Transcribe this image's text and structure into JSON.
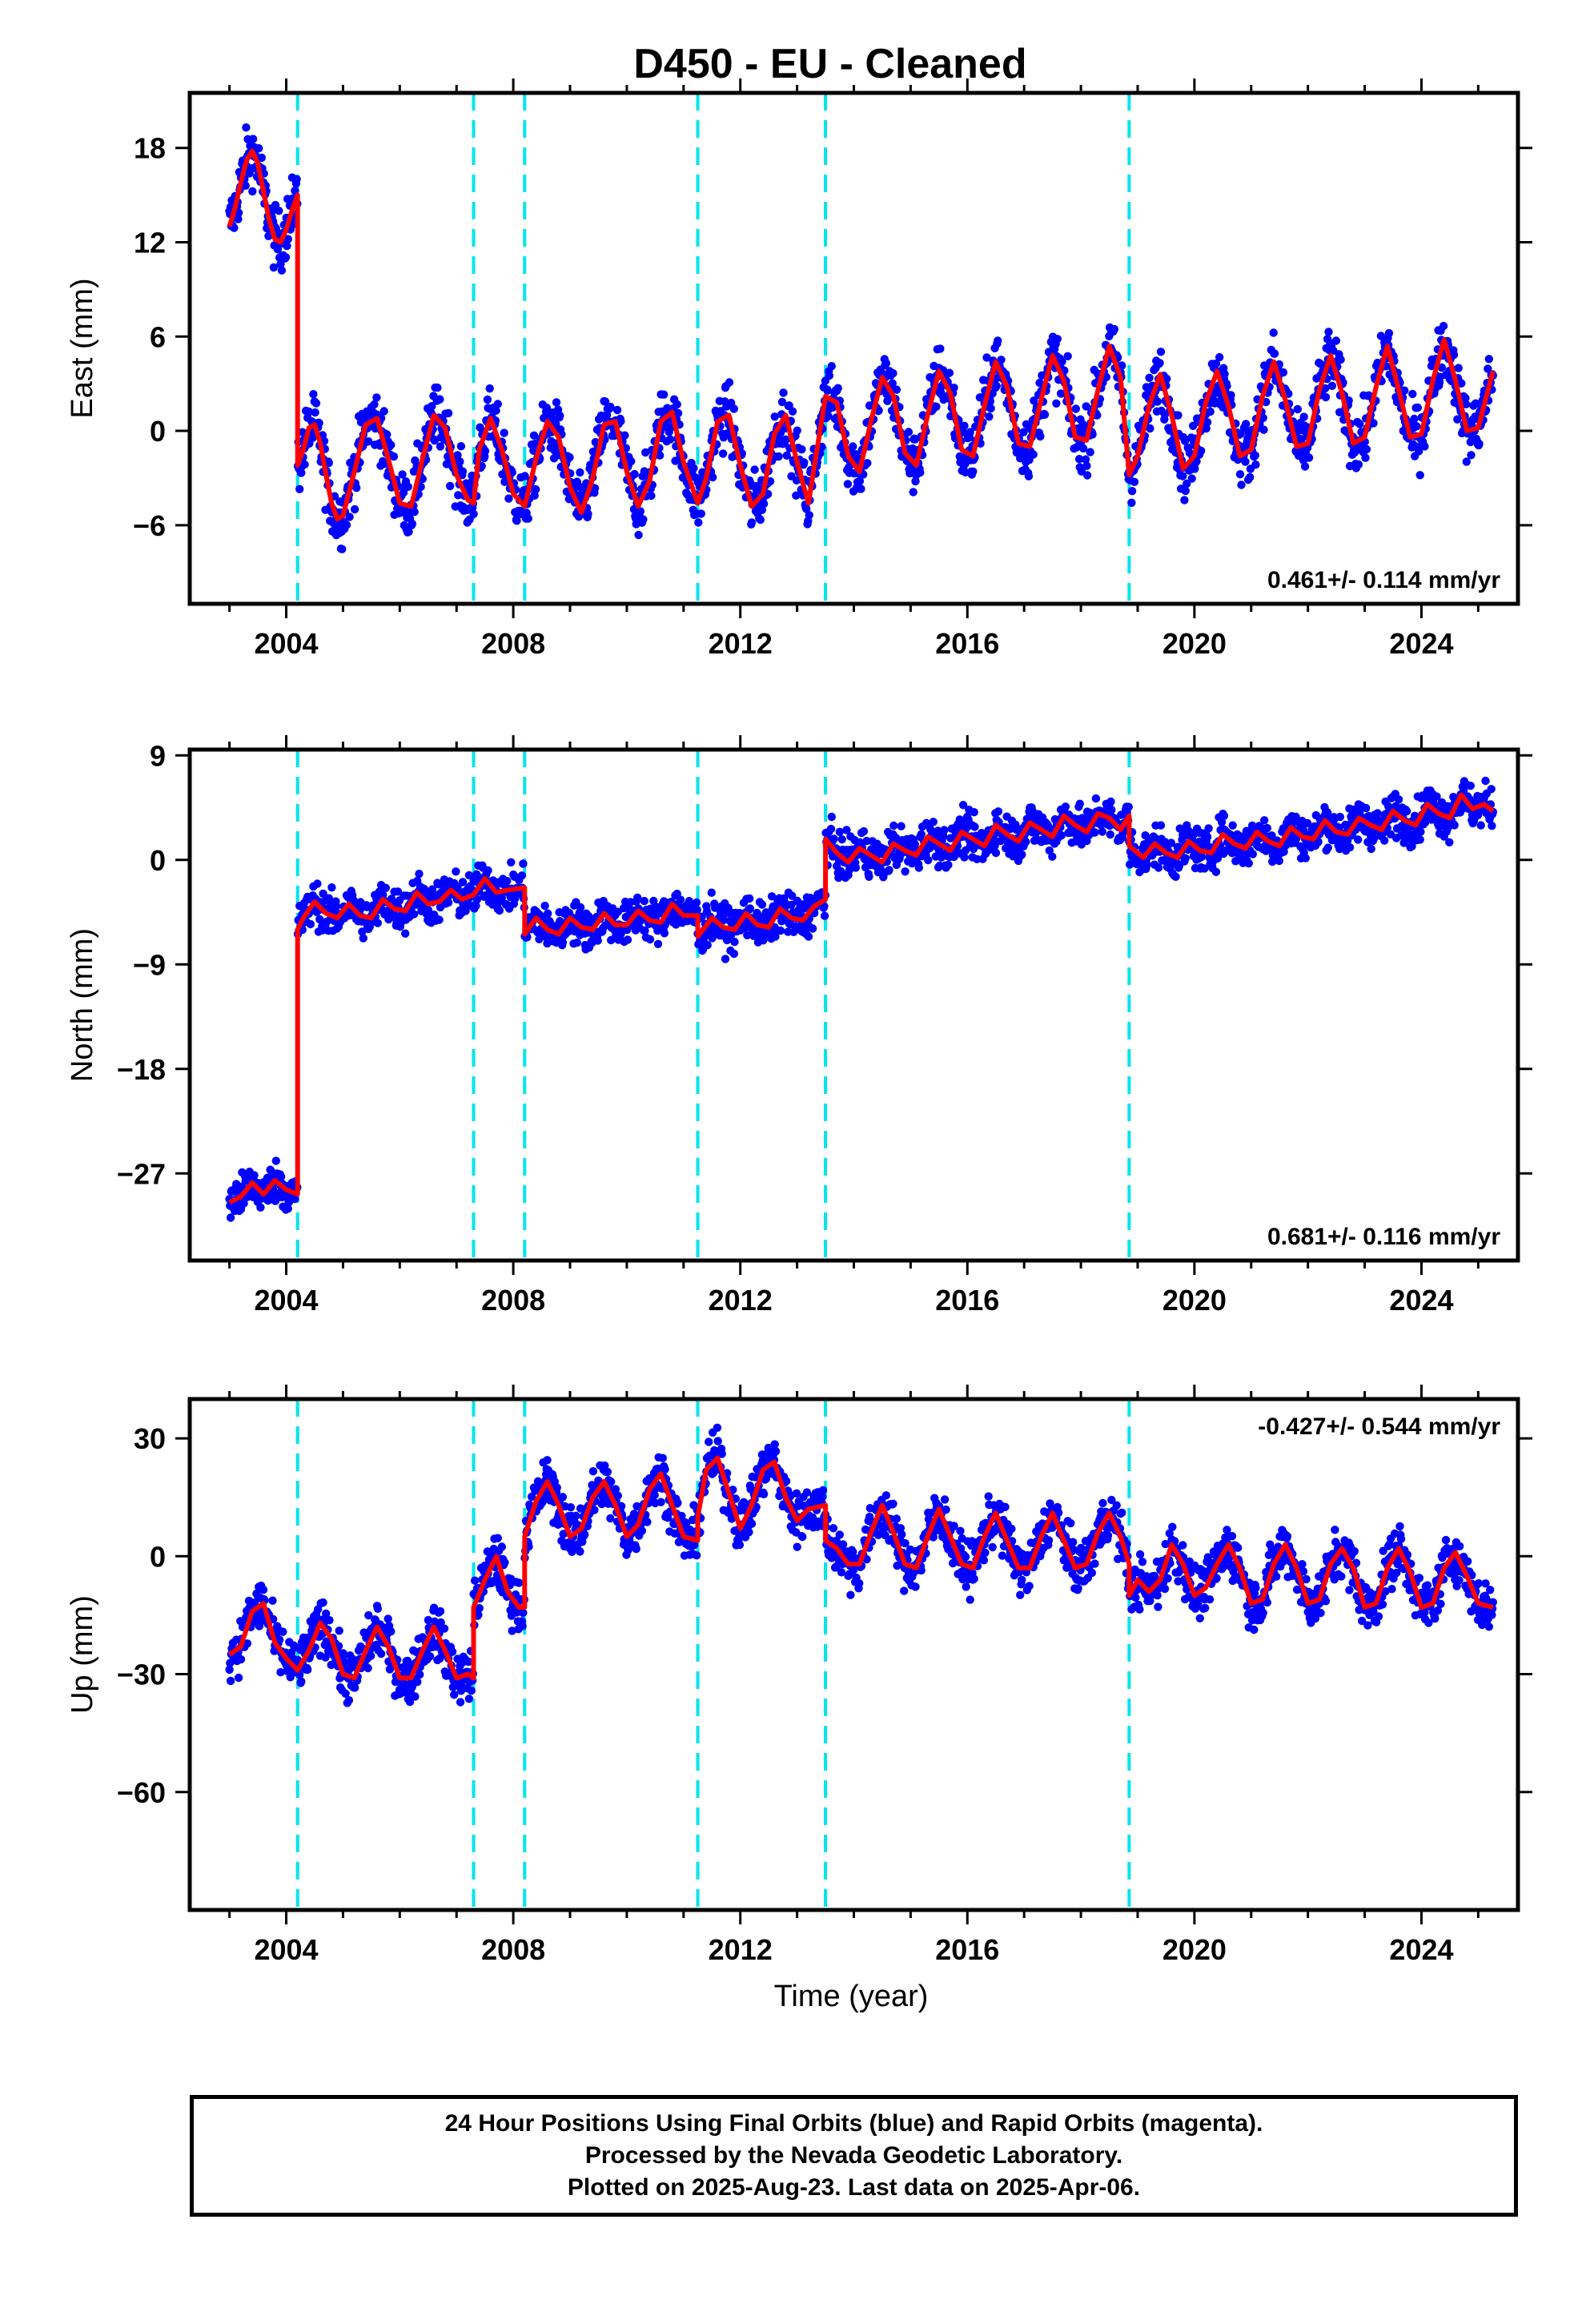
{
  "title": "D450  - EU - Cleaned",
  "xlabel": "Time (year)",
  "colors": {
    "data": "#0000ff",
    "model": "#ff0000",
    "breaks": "#00e5ee",
    "frame": "#000000"
  },
  "footer": {
    "line1": "24 Hour Positions Using Final Orbits (blue) and Rapid Orbits (magenta).",
    "line2": "Processed by the Nevada Geodetic Laboratory.",
    "line3": "Plotted on 2025-Aug-23. Last data on 2025-Apr-06."
  },
  "chart_data": [
    {
      "type": "scatter",
      "component": "east",
      "ylabel": "East (mm)",
      "rate_label": "0.461+/- 0.114 mm/yr",
      "rate_position": "bottom-right",
      "xlim": [
        2002.3,
        2025.7
      ],
      "ylim": [
        -11,
        21.5
      ],
      "xticks": [
        2004,
        2008,
        2012,
        2016,
        2020,
        2024
      ],
      "yticks": [
        -6,
        0,
        6,
        12,
        18
      ],
      "ytick_labels": [
        "−6",
        "0",
        "6",
        "12",
        "18"
      ],
      "steps": [
        2004.2,
        2007.3,
        2008.2,
        2011.25,
        2013.5,
        2018.85
      ],
      "data_range": [
        2003.0,
        2025.26
      ],
      "series": [
        {
          "legend": "model",
          "x": [
            2003.0,
            2003.1,
            2003.2,
            2003.3,
            2003.4,
            2003.5,
            2003.6,
            2003.7,
            2003.8,
            2003.9,
            2004.0,
            2004.1,
            2004.2,
            2004.2,
            2004.3,
            2004.4,
            2004.5,
            2004.6,
            2004.7,
            2004.8,
            2004.9,
            2005.0,
            2005.2,
            2005.4,
            2005.6,
            2005.8,
            2006.0,
            2006.2,
            2006.4,
            2006.6,
            2006.8,
            2007.0,
            2007.2,
            2007.3,
            2007.4,
            2007.6,
            2007.8,
            2008.0,
            2008.2,
            2008.4,
            2008.6,
            2008.8,
            2009.0,
            2009.2,
            2009.4,
            2009.6,
            2009.8,
            2010.0,
            2010.2,
            2010.4,
            2010.6,
            2010.8,
            2011.0,
            2011.25,
            2011.4,
            2011.6,
            2011.8,
            2012.0,
            2012.2,
            2012.4,
            2012.6,
            2012.8,
            2013.0,
            2013.2,
            2013.5,
            2013.7,
            2013.9,
            2014.1,
            2014.3,
            2014.5,
            2014.7,
            2014.9,
            2015.1,
            2015.3,
            2015.5,
            2015.7,
            2015.9,
            2016.1,
            2016.3,
            2016.5,
            2016.7,
            2016.9,
            2017.1,
            2017.3,
            2017.5,
            2017.7,
            2017.9,
            2018.1,
            2018.3,
            2018.5,
            2018.7,
            2018.85,
            2019.0,
            2019.2,
            2019.4,
            2019.6,
            2019.8,
            2020.0,
            2020.2,
            2020.4,
            2020.6,
            2020.8,
            2021.0,
            2021.2,
            2021.4,
            2021.6,
            2021.8,
            2022.0,
            2022.2,
            2022.4,
            2022.6,
            2022.8,
            2023.0,
            2023.2,
            2023.4,
            2023.6,
            2023.8,
            2024.0,
            2024.2,
            2024.4,
            2024.6,
            2024.8,
            2025.0,
            2025.26
          ],
          "y": [
            13.0,
            14.2,
            15.8,
            17.2,
            17.8,
            17.0,
            15.2,
            13.4,
            12.2,
            12.0,
            12.8,
            14.0,
            15.0,
            -2.2,
            -1.2,
            0.2,
            0.4,
            -0.8,
            -2.8,
            -4.6,
            -5.6,
            -5.4,
            -2.6,
            0.4,
            0.8,
            -1.8,
            -4.6,
            -4.8,
            -1.8,
            1.0,
            0.2,
            -2.8,
            -4.4,
            -4.6,
            -1.2,
            0.8,
            -1.2,
            -4.0,
            -4.8,
            -1.8,
            0.6,
            -0.4,
            -3.6,
            -5.2,
            -3.0,
            0.4,
            0.6,
            -2.6,
            -4.8,
            -3.2,
            0.6,
            1.2,
            -2.0,
            -4.6,
            -3.0,
            0.6,
            1.0,
            -2.2,
            -4.8,
            -4.0,
            -0.2,
            1.0,
            -2.0,
            -4.6,
            2.2,
            1.8,
            -1.6,
            -2.6,
            0.6,
            3.4,
            2.2,
            -1.4,
            -2.2,
            1.0,
            3.8,
            2.4,
            -1.2,
            -1.6,
            1.6,
            4.4,
            2.8,
            -0.8,
            -1.0,
            2.0,
            4.8,
            3.2,
            -0.4,
            -0.6,
            2.6,
            5.4,
            3.4,
            -2.8,
            -1.6,
            1.6,
            3.6,
            1.0,
            -2.4,
            -1.6,
            1.8,
            3.8,
            1.6,
            -1.6,
            -1.2,
            2.2,
            4.4,
            2.0,
            -1.0,
            -0.8,
            2.6,
            4.8,
            2.4,
            -0.8,
            -0.4,
            2.8,
            5.4,
            2.6,
            -0.4,
            -0.2,
            3.2,
            5.8,
            3.2,
            0.0,
            0.2,
            3.8
          ]
        }
      ]
    },
    {
      "type": "scatter",
      "component": "north",
      "ylabel": "North (mm)",
      "rate_label": "0.681+/- 0.116 mm/yr",
      "rate_position": "bottom-right",
      "xlim": [
        2002.3,
        2025.7
      ],
      "ylim": [
        -34.5,
        9.5
      ],
      "xticks": [
        2004,
        2008,
        2012,
        2016,
        2020,
        2024
      ],
      "yticks": [
        -27,
        -18,
        -9,
        0,
        9
      ],
      "ytick_labels": [
        "−27",
        "−18",
        "−9",
        "0",
        "9"
      ],
      "steps": [
        2004.2,
        2007.3,
        2008.2,
        2011.25,
        2013.5,
        2018.85
      ],
      "data_range": [
        2003.0,
        2025.26
      ],
      "series": [
        {
          "legend": "model",
          "x": [
            2003.0,
            2003.2,
            2003.4,
            2003.6,
            2003.8,
            2004.0,
            2004.2,
            2004.2,
            2004.3,
            2004.5,
            2004.7,
            2004.9,
            2005.1,
            2005.3,
            2005.5,
            2005.7,
            2005.9,
            2006.1,
            2006.3,
            2006.5,
            2006.7,
            2006.9,
            2007.1,
            2007.3,
            2007.5,
            2007.7,
            2007.9,
            2008.2,
            2008.2,
            2008.4,
            2008.6,
            2008.8,
            2009.0,
            2009.2,
            2009.4,
            2009.6,
            2009.8,
            2010.0,
            2010.2,
            2010.4,
            2010.6,
            2010.8,
            2011.0,
            2011.25,
            2011.25,
            2011.5,
            2011.7,
            2011.9,
            2012.1,
            2012.3,
            2012.5,
            2012.7,
            2012.9,
            2013.1,
            2013.3,
            2013.5,
            2013.5,
            2013.7,
            2013.9,
            2014.1,
            2014.3,
            2014.5,
            2014.7,
            2014.9,
            2015.1,
            2015.3,
            2015.5,
            2015.7,
            2015.9,
            2016.1,
            2016.3,
            2016.5,
            2016.7,
            2016.9,
            2017.1,
            2017.3,
            2017.5,
            2017.7,
            2017.9,
            2018.1,
            2018.3,
            2018.5,
            2018.7,
            2018.85,
            2018.85,
            2019.1,
            2019.3,
            2019.5,
            2019.7,
            2019.9,
            2020.1,
            2020.3,
            2020.5,
            2020.7,
            2020.9,
            2021.1,
            2021.3,
            2021.5,
            2021.7,
            2021.9,
            2022.1,
            2022.3,
            2022.5,
            2022.7,
            2022.9,
            2023.1,
            2023.3,
            2023.5,
            2023.7,
            2023.9,
            2024.1,
            2024.3,
            2024.5,
            2024.7,
            2024.9,
            2025.1,
            2025.26
          ],
          "y": [
            -29.5,
            -29.0,
            -27.8,
            -28.8,
            -27.6,
            -28.4,
            -28.8,
            -6.0,
            -5.0,
            -3.6,
            -4.6,
            -5.0,
            -3.8,
            -4.8,
            -5.0,
            -3.4,
            -4.2,
            -4.4,
            -2.8,
            -3.8,
            -3.6,
            -2.6,
            -3.4,
            -3.0,
            -1.6,
            -2.8,
            -2.6,
            -2.4,
            -6.4,
            -5.0,
            -6.0,
            -6.4,
            -5.0,
            -5.8,
            -6.0,
            -4.6,
            -5.6,
            -5.6,
            -4.4,
            -5.2,
            -5.4,
            -3.8,
            -4.8,
            -4.8,
            -6.6,
            -5.0,
            -5.8,
            -6.0,
            -4.6,
            -5.6,
            -5.8,
            -4.2,
            -5.0,
            -5.2,
            -4.0,
            -3.4,
            1.8,
            0.6,
            -0.2,
            1.0,
            0.4,
            -0.2,
            1.4,
            0.8,
            0.4,
            2.0,
            1.4,
            0.8,
            2.4,
            1.8,
            1.2,
            3.0,
            2.2,
            1.6,
            3.2,
            2.6,
            2.0,
            3.8,
            3.0,
            2.4,
            4.0,
            3.6,
            2.6,
            3.8,
            1.2,
            0.2,
            1.4,
            0.6,
            0.2,
            1.6,
            0.8,
            0.6,
            2.2,
            1.4,
            1.0,
            2.4,
            1.6,
            1.2,
            2.8,
            2.0,
            1.8,
            3.4,
            2.4,
            2.2,
            3.6,
            3.0,
            2.6,
            4.2,
            3.4,
            3.0,
            4.8,
            4.0,
            3.6,
            5.6,
            4.4,
            4.8,
            4.2
          ]
        }
      ]
    },
    {
      "type": "scatter",
      "component": "up",
      "ylabel": "Up (mm)",
      "rate_label": "-0.427+/- 0.544 mm/yr",
      "rate_position": "top-right",
      "xlim": [
        2002.3,
        2025.7
      ],
      "ylim": [
        -90,
        40
      ],
      "xticks": [
        2004,
        2008,
        2012,
        2016,
        2020,
        2024
      ],
      "yticks": [
        -60,
        -30,
        0,
        30
      ],
      "ytick_labels": [
        "−60",
        "−30",
        "0",
        "30"
      ],
      "steps": [
        2004.2,
        2007.3,
        2008.2,
        2011.25,
        2013.5,
        2018.85
      ],
      "data_range": [
        2003.0,
        2025.26
      ],
      "series": [
        {
          "legend": "model",
          "x": [
            2003.0,
            2003.2,
            2003.4,
            2003.6,
            2003.8,
            2004.0,
            2004.2,
            2004.4,
            2004.6,
            2004.8,
            2005.0,
            2005.2,
            2005.4,
            2005.6,
            2005.8,
            2006.0,
            2006.2,
            2006.4,
            2006.6,
            2006.8,
            2007.0,
            2007.2,
            2007.3,
            2007.3,
            2007.5,
            2007.7,
            2007.9,
            2008.1,
            2008.2,
            2008.2,
            2008.4,
            2008.6,
            2008.8,
            2009.0,
            2009.2,
            2009.4,
            2009.6,
            2009.8,
            2010.0,
            2010.2,
            2010.4,
            2010.6,
            2010.8,
            2011.0,
            2011.25,
            2011.25,
            2011.4,
            2011.6,
            2011.8,
            2012.0,
            2012.2,
            2012.4,
            2012.6,
            2012.8,
            2013.0,
            2013.2,
            2013.5,
            2013.5,
            2013.7,
            2013.9,
            2014.1,
            2014.3,
            2014.5,
            2014.7,
            2014.9,
            2015.1,
            2015.3,
            2015.5,
            2015.7,
            2015.9,
            2016.1,
            2016.3,
            2016.5,
            2016.7,
            2016.9,
            2017.1,
            2017.3,
            2017.5,
            2017.7,
            2017.9,
            2018.1,
            2018.3,
            2018.5,
            2018.7,
            2018.85,
            2018.85,
            2019.0,
            2019.2,
            2019.4,
            2019.6,
            2019.8,
            2020.0,
            2020.2,
            2020.4,
            2020.6,
            2020.8,
            2021.0,
            2021.2,
            2021.4,
            2021.6,
            2021.8,
            2022.0,
            2022.2,
            2022.4,
            2022.6,
            2022.8,
            2023.0,
            2023.2,
            2023.4,
            2023.6,
            2023.8,
            2024.0,
            2024.2,
            2024.4,
            2024.6,
            2024.8,
            2025.0,
            2025.26
          ],
          "y": [
            -25,
            -23,
            -14,
            -12,
            -22,
            -26,
            -29,
            -24,
            -17,
            -21,
            -30,
            -31,
            -24,
            -18,
            -23,
            -31,
            -31,
            -24,
            -18,
            -24,
            -31,
            -30,
            -31,
            -13,
            -6,
            0,
            -9,
            -13,
            -13,
            5,
            14,
            19,
            13,
            5,
            7,
            15,
            19,
            13,
            5,
            8,
            17,
            21,
            13,
            5,
            4,
            10,
            22,
            25,
            16,
            7,
            13,
            22,
            24,
            15,
            9,
            12,
            13,
            4,
            2,
            -2,
            -2,
            6,
            13,
            6,
            -2,
            -3,
            5,
            12,
            5,
            -2,
            -3,
            5,
            11,
            4,
            -3,
            -3,
            5,
            11,
            4,
            -3,
            -2,
            6,
            11,
            5,
            -2,
            -10,
            -6,
            -9,
            -6,
            3,
            -2,
            -10,
            -8,
            -2,
            3,
            -3,
            -12,
            -11,
            -2,
            3,
            -3,
            -12,
            -11,
            -2,
            2,
            -3,
            -13,
            -12,
            -3,
            2,
            -4,
            -13,
            -12,
            -3,
            1,
            -5,
            -12,
            -13
          ]
        }
      ]
    }
  ]
}
